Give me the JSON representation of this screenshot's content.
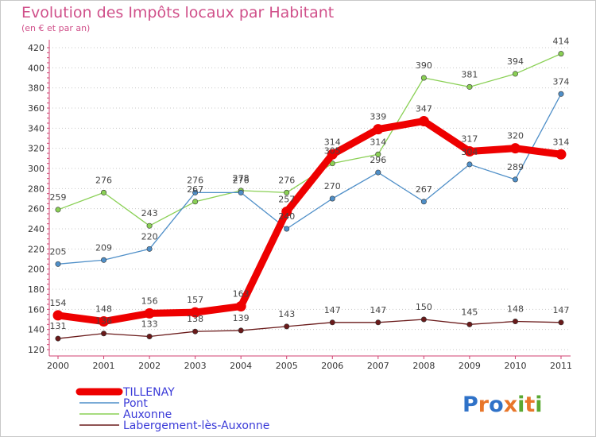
{
  "chart_data": {
    "type": "line",
    "title": "Evolution des Impôts locaux par Habitant",
    "subtitle": "(en € et par an)",
    "xlabel": "",
    "ylabel": "",
    "x": [
      "2000",
      "2001",
      "2002",
      "2003",
      "2004",
      "2005",
      "2006",
      "2007",
      "2008",
      "2009",
      "2010",
      "2011"
    ],
    "ylim": [
      120,
      420
    ],
    "yticks": [
      "120",
      "140",
      "160",
      "180",
      "200",
      "220",
      "240",
      "260",
      "280",
      "300",
      "320",
      "340",
      "360",
      "380",
      "400",
      "420"
    ],
    "grid": "horizontal dotted",
    "legend_position": "bottom-left",
    "series": [
      {
        "name": "TILLENAY",
        "color": "#ee0000",
        "values": [
          154,
          148,
          156,
          157,
          163,
          257,
          314,
          339,
          347,
          317,
          320,
          314
        ]
      },
      {
        "name": "Pont",
        "color": "#4f8fc8",
        "values": [
          205,
          209,
          220,
          276,
          276,
          240,
          270,
          296,
          267,
          304,
          289,
          374
        ]
      },
      {
        "name": "Auxonne",
        "color": "#8ad055",
        "values": [
          259,
          276,
          243,
          267,
          278,
          276,
          305,
          314,
          390,
          381,
          394,
          414
        ]
      },
      {
        "name": "Labergement-lès-Auxonne",
        "color": "#6a1a1a",
        "values": [
          131,
          136,
          133,
          138,
          139,
          143,
          147,
          147,
          150,
          145,
          148,
          147
        ]
      }
    ]
  },
  "logo": {
    "text": "Proxiti",
    "colors": [
      "#2f72c8",
      "#e8762a",
      "#2f72c8",
      "#e8762a",
      "#5aa832",
      "#e8762a",
      "#5aa832"
    ]
  }
}
